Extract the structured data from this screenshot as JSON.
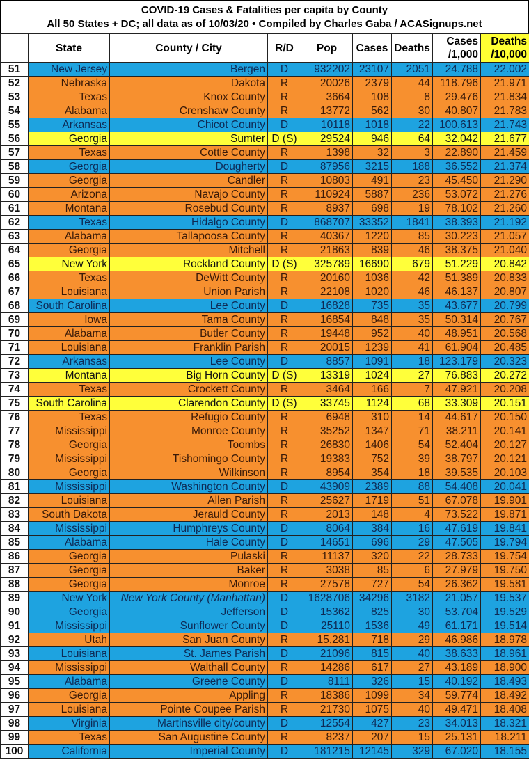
{
  "title": {
    "line1": "COVID-19 Cases & Fatalities per capita by County",
    "line2": "All 50 States + DC; all data as of 10/03/20  • Compiled by Charles Gaba / ACASignups.net"
  },
  "columns": [
    "",
    "State",
    "County / City",
    "R/D",
    "Pop",
    "Cases",
    "Deaths",
    "Cases /1,000",
    "Deaths /10,000"
  ],
  "colors": {
    "D": "#1ea3e0",
    "R": "#f7902f",
    "D (S)": "#ffff3a",
    "highlight_header": "#ffff33"
  },
  "rows": [
    [
      "51",
      "New Jersey",
      "Bergen",
      "D",
      "932202",
      "23107",
      "2051",
      "24.788",
      "22.002"
    ],
    [
      "52",
      "Nebraska",
      "Dakota",
      "R",
      "20026",
      "2379",
      "44",
      "118.796",
      "21.971"
    ],
    [
      "53",
      "Texas",
      "Knox County",
      "R",
      "3664",
      "108",
      "8",
      "29.476",
      "21.834"
    ],
    [
      "54",
      "Alabama",
      "Crenshaw County",
      "R",
      "13772",
      "562",
      "30",
      "40.807",
      "21.783"
    ],
    [
      "55",
      "Arkansas",
      "Chicot County",
      "D",
      "10118",
      "1018",
      "22",
      "100.613",
      "21.743"
    ],
    [
      "56",
      "Georgia",
      "Sumter",
      "D (S)",
      "29524",
      "946",
      "64",
      "32.042",
      "21.677"
    ],
    [
      "57",
      "Texas",
      "Cottle County",
      "R",
      "1398",
      "32",
      "3",
      "22.890",
      "21.459"
    ],
    [
      "58",
      "Georgia",
      "Dougherty",
      "D",
      "87956",
      "3215",
      "188",
      "36.552",
      "21.374"
    ],
    [
      "59",
      "Georgia",
      "Candler",
      "R",
      "10803",
      "491",
      "23",
      "45.450",
      "21.290"
    ],
    [
      "60",
      "Arizona",
      "Navajo County",
      "R",
      "110924",
      "5887",
      "236",
      "53.072",
      "21.276"
    ],
    [
      "61",
      "Montana",
      "Rosebud County",
      "R",
      "8937",
      "698",
      "19",
      "78.102",
      "21.260"
    ],
    [
      "62",
      "Texas",
      "Hidalgo County",
      "D",
      "868707",
      "33352",
      "1841",
      "38.393",
      "21.192"
    ],
    [
      "63",
      "Alabama",
      "Tallapoosa County",
      "R",
      "40367",
      "1220",
      "85",
      "30.223",
      "21.057"
    ],
    [
      "64",
      "Georgia",
      "Mitchell",
      "R",
      "21863",
      "839",
      "46",
      "38.375",
      "21.040"
    ],
    [
      "65",
      "New York",
      "Rockland County",
      "D (S)",
      "325789",
      "16690",
      "679",
      "51.229",
      "20.842"
    ],
    [
      "66",
      "Texas",
      "DeWitt County",
      "R",
      "20160",
      "1036",
      "42",
      "51.389",
      "20.833"
    ],
    [
      "67",
      "Louisiana",
      "Union Parish",
      "R",
      "22108",
      "1020",
      "46",
      "46.137",
      "20.807"
    ],
    [
      "68",
      "South Carolina",
      "Lee County",
      "D",
      "16828",
      "735",
      "35",
      "43.677",
      "20.799"
    ],
    [
      "69",
      "Iowa",
      "Tama County",
      "R",
      "16854",
      "848",
      "35",
      "50.314",
      "20.767"
    ],
    [
      "70",
      "Alabama",
      "Butler County",
      "R",
      "19448",
      "952",
      "40",
      "48.951",
      "20.568"
    ],
    [
      "71",
      "Louisiana",
      "Franklin Parish",
      "R",
      "20015",
      "1239",
      "41",
      "61.904",
      "20.485"
    ],
    [
      "72",
      "Arkansas",
      "Lee County",
      "D",
      "8857",
      "1091",
      "18",
      "123.179",
      "20.323"
    ],
    [
      "73",
      "Montana",
      "Big Horn County",
      "D (S)",
      "13319",
      "1024",
      "27",
      "76.883",
      "20.272"
    ],
    [
      "74",
      "Texas",
      "Crockett County",
      "R",
      "3464",
      "166",
      "7",
      "47.921",
      "20.208"
    ],
    [
      "75",
      "South Carolina",
      "Clarendon County",
      "D (S)",
      "33745",
      "1124",
      "68",
      "33.309",
      "20.151"
    ],
    [
      "76",
      "Texas",
      "Refugio County",
      "R",
      "6948",
      "310",
      "14",
      "44.617",
      "20.150"
    ],
    [
      "77",
      "Mississippi",
      "Monroe County",
      "R",
      "35252",
      "1347",
      "71",
      "38.211",
      "20.141"
    ],
    [
      "78",
      "Georgia",
      "Toombs",
      "R",
      "26830",
      "1406",
      "54",
      "52.404",
      "20.127"
    ],
    [
      "79",
      "Mississippi",
      "Tishomingo County",
      "R",
      "19383",
      "752",
      "39",
      "38.797",
      "20.121"
    ],
    [
      "80",
      "Georgia",
      "Wilkinson",
      "R",
      "8954",
      "354",
      "18",
      "39.535",
      "20.103"
    ],
    [
      "81",
      "Mississippi",
      "Washington County",
      "D",
      "43909",
      "2389",
      "88",
      "54.408",
      "20.041"
    ],
    [
      "82",
      "Louisiana",
      "Allen Parish",
      "R",
      "25627",
      "1719",
      "51",
      "67.078",
      "19.901"
    ],
    [
      "83",
      "South Dakota",
      "Jerauld County",
      "R",
      "2013",
      "148",
      "4",
      "73.522",
      "19.871"
    ],
    [
      "84",
      "Mississippi",
      "Humphreys County",
      "D",
      "8064",
      "384",
      "16",
      "47.619",
      "19.841"
    ],
    [
      "85",
      "Alabama",
      "Hale County",
      "D",
      "14651",
      "696",
      "29",
      "47.505",
      "19.794"
    ],
    [
      "86",
      "Georgia",
      "Pulaski",
      "R",
      "11137",
      "320",
      "22",
      "28.733",
      "19.754"
    ],
    [
      "87",
      "Georgia",
      "Baker",
      "R",
      "3038",
      "85",
      "6",
      "27.979",
      "19.750"
    ],
    [
      "88",
      "Georgia",
      "Monroe",
      "R",
      "27578",
      "727",
      "54",
      "26.362",
      "19.581"
    ],
    [
      "89",
      "New York",
      "New York County (Manhattan)",
      "D",
      "1628706",
      "34296",
      "3182",
      "21.057",
      "19.537"
    ],
    [
      "90",
      "Georgia",
      "Jefferson",
      "D",
      "15362",
      "825",
      "30",
      "53.704",
      "19.529"
    ],
    [
      "91",
      "Mississippi",
      "Sunflower County",
      "D",
      "25110",
      "1536",
      "49",
      "61.171",
      "19.514"
    ],
    [
      "92",
      "Utah",
      "San Juan County",
      "R",
      "15,281",
      "718",
      "29",
      "46.986",
      "18.978"
    ],
    [
      "93",
      "Louisiana",
      "St. James Parish",
      "D",
      "21096",
      "815",
      "40",
      "38.633",
      "18.961"
    ],
    [
      "94",
      "Mississippi",
      "Walthall County",
      "R",
      "14286",
      "617",
      "27",
      "43.189",
      "18.900"
    ],
    [
      "95",
      "Alabama",
      "Greene County",
      "D",
      "8111",
      "326",
      "15",
      "40.192",
      "18.493"
    ],
    [
      "96",
      "Georgia",
      "Appling",
      "R",
      "18386",
      "1099",
      "34",
      "59.774",
      "18.492"
    ],
    [
      "97",
      "Louisiana",
      "Pointe Coupee Parish",
      "R",
      "21730",
      "1075",
      "40",
      "49.471",
      "18.408"
    ],
    [
      "98",
      "Virginia",
      "Martinsville city/county",
      "D",
      "12554",
      "427",
      "23",
      "34.013",
      "18.321"
    ],
    [
      "99",
      "Texas",
      "San Augustine County",
      "R",
      "8237",
      "207",
      "15",
      "25.131",
      "18.211"
    ],
    [
      "100",
      "California",
      "Imperial County",
      "D",
      "181215",
      "12145",
      "329",
      "67.020",
      "18.155"
    ]
  ]
}
